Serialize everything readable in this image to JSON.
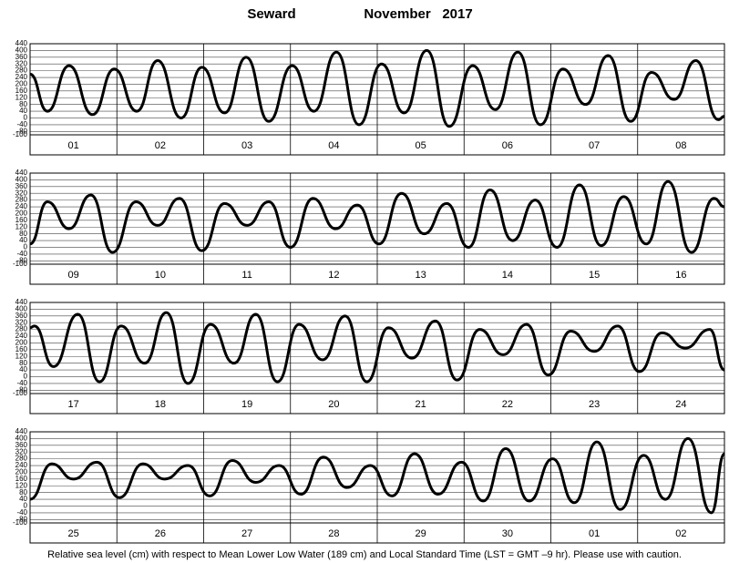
{
  "header": {
    "station": "Seward",
    "month": "November",
    "year": "2017"
  },
  "footnote": "Relative sea level (cm) with respect to Mean Lower Low Water (189 cm) and Local Standard Time (LST = GMT –9 hr). Please use with caution.",
  "chart_data": [
    {
      "type": "line",
      "color": "#000000",
      "grid": true,
      "categories": [
        "01",
        "02",
        "03",
        "04",
        "05",
        "06",
        "07",
        "08"
      ],
      "xlim": [
        0,
        8
      ],
      "ylim": [
        -100,
        440
      ],
      "yticks": [
        -100,
        -80,
        -40,
        0,
        40,
        80,
        120,
        160,
        200,
        240,
        280,
        320,
        360,
        400,
        440
      ],
      "x": [
        0,
        0.2,
        0.45,
        0.72,
        0.97,
        1.23,
        1.47,
        1.74,
        1.98,
        2.24,
        2.49,
        2.75,
        3.02,
        3.27,
        3.53,
        3.79,
        4.05,
        4.31,
        4.57,
        4.83,
        5.1,
        5.36,
        5.62,
        5.88,
        6.14,
        6.4,
        6.66,
        6.92,
        7.16,
        7.42,
        7.67,
        7.93,
        8
      ],
      "values": [
        260,
        40,
        310,
        20,
        290,
        40,
        340,
        0,
        300,
        30,
        360,
        -20,
        310,
        40,
        390,
        -40,
        320,
        30,
        400,
        -50,
        310,
        50,
        390,
        -40,
        290,
        80,
        370,
        -20,
        270,
        110,
        340,
        -10,
        10
      ]
    },
    {
      "type": "line",
      "color": "#000000",
      "grid": true,
      "categories": [
        "09",
        "10",
        "11",
        "12",
        "13",
        "14",
        "15",
        "16"
      ],
      "xlim": [
        0,
        8
      ],
      "ylim": [
        -100,
        440
      ],
      "yticks": [
        -100,
        -80,
        -40,
        0,
        40,
        80,
        120,
        160,
        200,
        240,
        280,
        320,
        360,
        400,
        440
      ],
      "x": [
        0,
        0.2,
        0.45,
        0.7,
        0.95,
        1.22,
        1.47,
        1.72,
        1.98,
        2.24,
        2.5,
        2.75,
        3.0,
        3.26,
        3.52,
        3.77,
        4.02,
        4.28,
        4.54,
        4.8,
        5.05,
        5.3,
        5.56,
        5.82,
        6.07,
        6.33,
        6.58,
        6.84,
        7.1,
        7.35,
        7.62,
        7.88,
        8
      ],
      "values": [
        20,
        270,
        110,
        310,
        -30,
        270,
        130,
        290,
        -20,
        260,
        130,
        270,
        0,
        290,
        110,
        250,
        20,
        320,
        80,
        260,
        0,
        340,
        40,
        280,
        0,
        370,
        10,
        300,
        20,
        390,
        -30,
        290,
        240
      ]
    },
    {
      "type": "line",
      "color": "#000000",
      "grid": true,
      "categories": [
        "17",
        "18",
        "19",
        "20",
        "21",
        "22",
        "23",
        "24"
      ],
      "xlim": [
        0,
        8
      ],
      "ylim": [
        -100,
        440
      ],
      "yticks": [
        -100,
        -80,
        -40,
        0,
        40,
        80,
        120,
        160,
        200,
        240,
        280,
        320,
        360,
        400,
        440
      ],
      "x": [
        0,
        0.05,
        0.27,
        0.55,
        0.8,
        1.05,
        1.32,
        1.57,
        1.82,
        2.08,
        2.35,
        2.6,
        2.85,
        3.1,
        3.37,
        3.63,
        3.88,
        4.13,
        4.4,
        4.67,
        4.92,
        5.18,
        5.45,
        5.72,
        5.97,
        6.23,
        6.5,
        6.77,
        7.02,
        7.28,
        7.55,
        7.83,
        8
      ],
      "values": [
        290,
        300,
        60,
        370,
        -30,
        300,
        80,
        380,
        -40,
        310,
        80,
        370,
        -30,
        310,
        100,
        360,
        -30,
        290,
        110,
        330,
        -20,
        280,
        130,
        310,
        10,
        270,
        150,
        300,
        30,
        260,
        170,
        280,
        40
      ]
    },
    {
      "type": "line",
      "color": "#000000",
      "grid": true,
      "categories": [
        "25",
        "26",
        "27",
        "28",
        "29",
        "30",
        "01",
        "02"
      ],
      "xlim": [
        0,
        8
      ],
      "ylim": [
        -100,
        440
      ],
      "yticks": [
        -100,
        -80,
        -40,
        0,
        40,
        80,
        120,
        160,
        200,
        240,
        280,
        320,
        360,
        400,
        440
      ],
      "x": [
        0,
        0.25,
        0.5,
        0.77,
        1.03,
        1.3,
        1.55,
        1.82,
        2.07,
        2.33,
        2.6,
        2.87,
        3.12,
        3.38,
        3.65,
        3.92,
        4.17,
        4.43,
        4.7,
        4.97,
        5.22,
        5.48,
        5.75,
        6.02,
        6.27,
        6.53,
        6.8,
        7.07,
        7.32,
        7.58,
        7.85,
        8
      ],
      "values": [
        40,
        250,
        160,
        260,
        50,
        250,
        160,
        240,
        60,
        270,
        140,
        240,
        70,
        290,
        110,
        240,
        60,
        310,
        70,
        260,
        30,
        340,
        30,
        280,
        20,
        380,
        -20,
        300,
        40,
        400,
        -40,
        310
      ]
    }
  ]
}
